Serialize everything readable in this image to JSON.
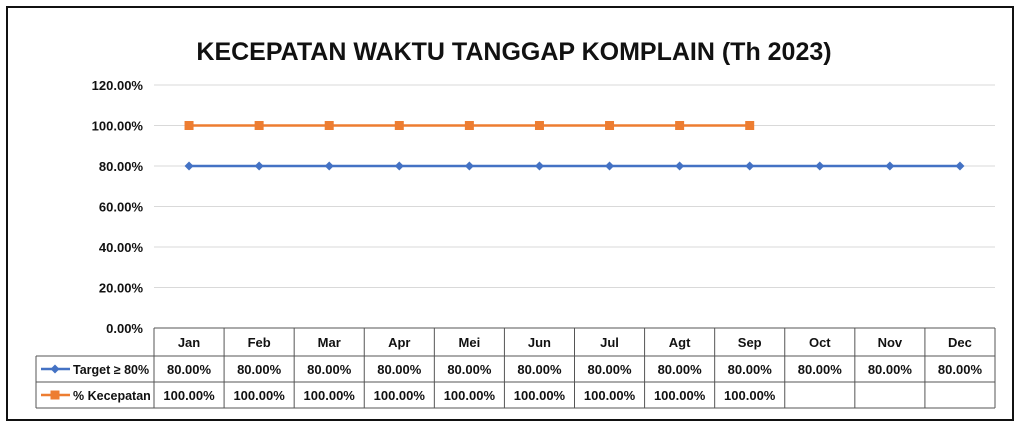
{
  "chart_data": {
    "type": "line",
    "title": "KECEPATAN WAKTU TANGGAP KOMPLAIN (Th 2023)",
    "categories": [
      "Jan",
      "Feb",
      "Mar",
      "Apr",
      "Mei",
      "Jun",
      "Jul",
      "Agt",
      "Sep",
      "Oct",
      "Nov",
      "Dec"
    ],
    "ylim": [
      0,
      120
    ],
    "yticks": [
      0,
      20,
      40,
      60,
      80,
      100,
      120
    ],
    "ytick_labels": [
      "0.00%",
      "20.00%",
      "40.00%",
      "60.00%",
      "80.00%",
      "100.00%",
      "120.00%"
    ],
    "grid": true,
    "legend_placement": "data-table",
    "series": [
      {
        "name": "Target ≥ 80%",
        "color": "#4472C4",
        "marker": "diamond",
        "values": [
          80,
          80,
          80,
          80,
          80,
          80,
          80,
          80,
          80,
          80,
          80,
          80
        ],
        "labels": [
          "80.00%",
          "80.00%",
          "80.00%",
          "80.00%",
          "80.00%",
          "80.00%",
          "80.00%",
          "80.00%",
          "80.00%",
          "80.00%",
          "80.00%",
          "80.00%"
        ]
      },
      {
        "name": "% Kecepatan",
        "color": "#ED7D31",
        "marker": "square",
        "values": [
          100,
          100,
          100,
          100,
          100,
          100,
          100,
          100,
          100,
          null,
          null,
          null
        ],
        "labels": [
          "100.00%",
          "100.00%",
          "100.00%",
          "100.00%",
          "100.00%",
          "100.00%",
          "100.00%",
          "100.00%",
          "100.00%",
          "",
          "",
          ""
        ]
      }
    ]
  }
}
